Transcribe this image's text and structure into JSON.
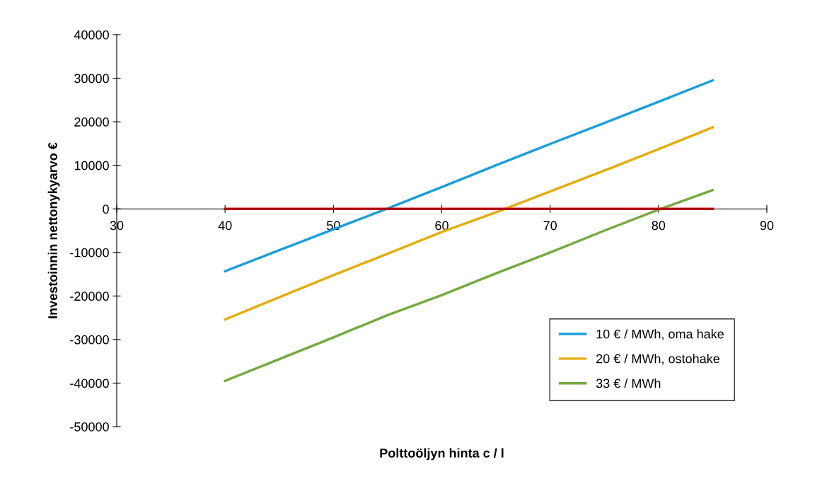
{
  "chart_data": {
    "type": "line",
    "xlabel": "Polttoöljyn hinta c / l",
    "ylabel": "Investoinnin nettonykyarvo €",
    "x": [
      40,
      45,
      50,
      55,
      60,
      65,
      70,
      75,
      80,
      85
    ],
    "series": [
      {
        "name": "10 € / MWh, oma hake",
        "color": "#1a9fd9",
        "values": [
          -14300,
          -9500,
          -4700,
          100,
          5000,
          10000,
          14900,
          19700,
          24600,
          29500
        ]
      },
      {
        "name": "20 € / MWh, ostohake",
        "color": "#e2ad10",
        "values": [
          -25400,
          -20300,
          -15200,
          -10300,
          -5300,
          -800,
          4000,
          8800,
          13700,
          18700
        ]
      },
      {
        "name": "33 € / MWh",
        "color": "#74aa3f",
        "values": [
          -39500,
          -34500,
          -29500,
          -24400,
          -19800,
          -14800,
          -10000,
          -5000,
          -200,
          4300
        ]
      },
      {
        "color": "#ff0000",
        "values": [
          0,
          0,
          0,
          0,
          0,
          0,
          0,
          0,
          0,
          0
        ]
      }
    ],
    "xlim": [
      30,
      90
    ],
    "xticks": [
      30,
      40,
      50,
      60,
      70,
      80,
      90
    ],
    "ylim": [
      -50000,
      40000
    ],
    "yticks": [
      -50000,
      -40000,
      -30000,
      -20000,
      -10000,
      0,
      10000,
      20000,
      30000,
      40000
    ],
    "grid": false,
    "legend": "bottom right",
    "marker": "none",
    "line_style": "solid"
  }
}
